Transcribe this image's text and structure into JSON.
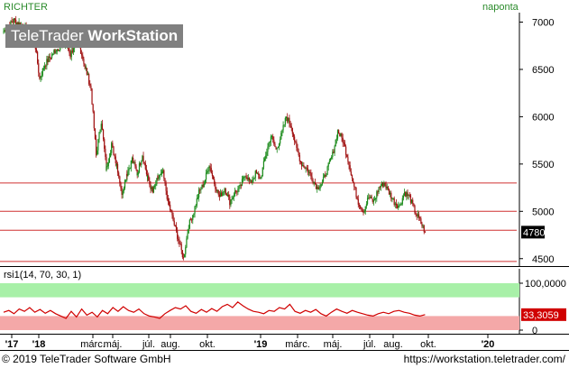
{
  "header": {
    "symbol": "RICHTER",
    "interval": "naponta",
    "watermark_brand": "TeleTrader",
    "watermark_product": "WorkStation"
  },
  "colors": {
    "up": "#1a8a1a",
    "down": "#a01010",
    "hline": "#d03030",
    "rsi_line": "#d00000",
    "rsi_overbought_zone": "#a8f0a8",
    "rsi_oversold_zone": "#f4a8a8",
    "price_marker": "#000000",
    "rsi_marker": "#d00000"
  },
  "footer": {
    "copyright": "© 2019 TeleTrader Software GmbH",
    "url": "https://workstation.teletrader.com/"
  },
  "chart_data": [
    {
      "type": "candlestick",
      "name": "RICHTER",
      "frequency": "naponta",
      "ylim": [
        4450,
        7100
      ],
      "y_ticks": [
        4500,
        5000,
        5500,
        6000,
        6500,
        7000
      ],
      "x_ticks": [
        "'17",
        "'18",
        "márc.",
        "máj.",
        "júl.",
        "aug.",
        "okt.",
        "'19",
        "márc.",
        "máj.",
        "júl.",
        "aug.",
        "okt.",
        "'20"
      ],
      "last_value": "4780",
      "horizontal_lines": [
        5300,
        5000,
        4800,
        4470
      ],
      "close_path": [
        [
          0,
          6900
        ],
        [
          2,
          7020
        ],
        [
          4,
          6950
        ],
        [
          6,
          6820
        ],
        [
          7,
          6400
        ],
        [
          8,
          6550
        ],
        [
          10,
          6700
        ],
        [
          12,
          6780
        ],
        [
          13,
          6650
        ],
        [
          14,
          6800
        ],
        [
          15,
          6700
        ],
        [
          16,
          6500
        ],
        [
          17,
          6300
        ],
        [
          18,
          5600
        ],
        [
          19,
          5950
        ],
        [
          20,
          5450
        ],
        [
          21,
          5700
        ],
        [
          22,
          5500
        ],
        [
          23,
          5200
        ],
        [
          24,
          5400
        ],
        [
          25,
          5550
        ],
        [
          26,
          5400
        ],
        [
          27,
          5600
        ],
        [
          28,
          5350
        ],
        [
          29,
          5200
        ],
        [
          30,
          5350
        ],
        [
          31,
          5400
        ],
        [
          32,
          5100
        ],
        [
          33,
          4900
        ],
        [
          34,
          4700
        ],
        [
          35,
          4500
        ],
        [
          36,
          4850
        ],
        [
          37,
          5000
        ],
        [
          38,
          5200
        ],
        [
          39,
          5300
        ],
        [
          40,
          5500
        ],
        [
          41,
          5300
        ],
        [
          42,
          5150
        ],
        [
          43,
          5250
        ],
        [
          44,
          5100
        ],
        [
          45,
          5200
        ],
        [
          46,
          5250
        ],
        [
          47,
          5400
        ],
        [
          48,
          5300
        ],
        [
          49,
          5400
        ],
        [
          50,
          5350
        ],
        [
          51,
          5600
        ],
        [
          52,
          5800
        ],
        [
          53,
          5650
        ],
        [
          54,
          5800
        ],
        [
          55,
          6000
        ],
        [
          56,
          5900
        ],
        [
          57,
          5650
        ],
        [
          58,
          5500
        ],
        [
          59,
          5450
        ],
        [
          60,
          5350
        ],
        [
          61,
          5250
        ],
        [
          62,
          5300
        ],
        [
          63,
          5450
        ],
        [
          64,
          5600
        ],
        [
          65,
          5850
        ],
        [
          66,
          5750
        ],
        [
          67,
          5550
        ],
        [
          68,
          5300
        ],
        [
          69,
          5100
        ],
        [
          70,
          5000
        ],
        [
          71,
          5150
        ],
        [
          72,
          5100
        ],
        [
          73,
          5250
        ],
        [
          74,
          5300
        ],
        [
          75,
          5200
        ],
        [
          76,
          5100
        ],
        [
          77,
          5050
        ],
        [
          78,
          5200
        ],
        [
          79,
          5150
        ],
        [
          80,
          5000
        ],
        [
          81,
          4900
        ],
        [
          82,
          4780
        ]
      ]
    },
    {
      "type": "line",
      "name": "rsi1(14, 70, 30, 1)",
      "ylim": [
        0,
        100
      ],
      "y_ticks": [
        0,
        100
      ],
      "y_tick_labels": [
        "0",
        "100,0000"
      ],
      "overbought": 70,
      "oversold": 30,
      "last_value": "33,3059",
      "values": [
        38,
        42,
        35,
        45,
        40,
        48,
        38,
        44,
        36,
        42,
        35,
        30,
        25,
        40,
        28,
        45,
        32,
        38,
        28,
        42,
        35,
        48,
        40,
        50,
        42,
        38,
        45,
        35,
        30,
        28,
        25,
        35,
        42,
        48,
        45,
        52,
        40,
        36,
        44,
        38,
        46,
        40,
        50,
        55,
        48,
        60,
        52,
        45,
        40,
        38,
        35,
        42,
        40,
        48,
        45,
        55,
        40,
        36,
        42,
        38,
        44,
        35,
        30,
        38,
        45,
        40,
        36,
        42,
        38,
        35,
        32,
        30,
        35,
        38,
        35,
        40,
        42,
        38,
        36,
        32,
        30,
        33
      ]
    }
  ]
}
